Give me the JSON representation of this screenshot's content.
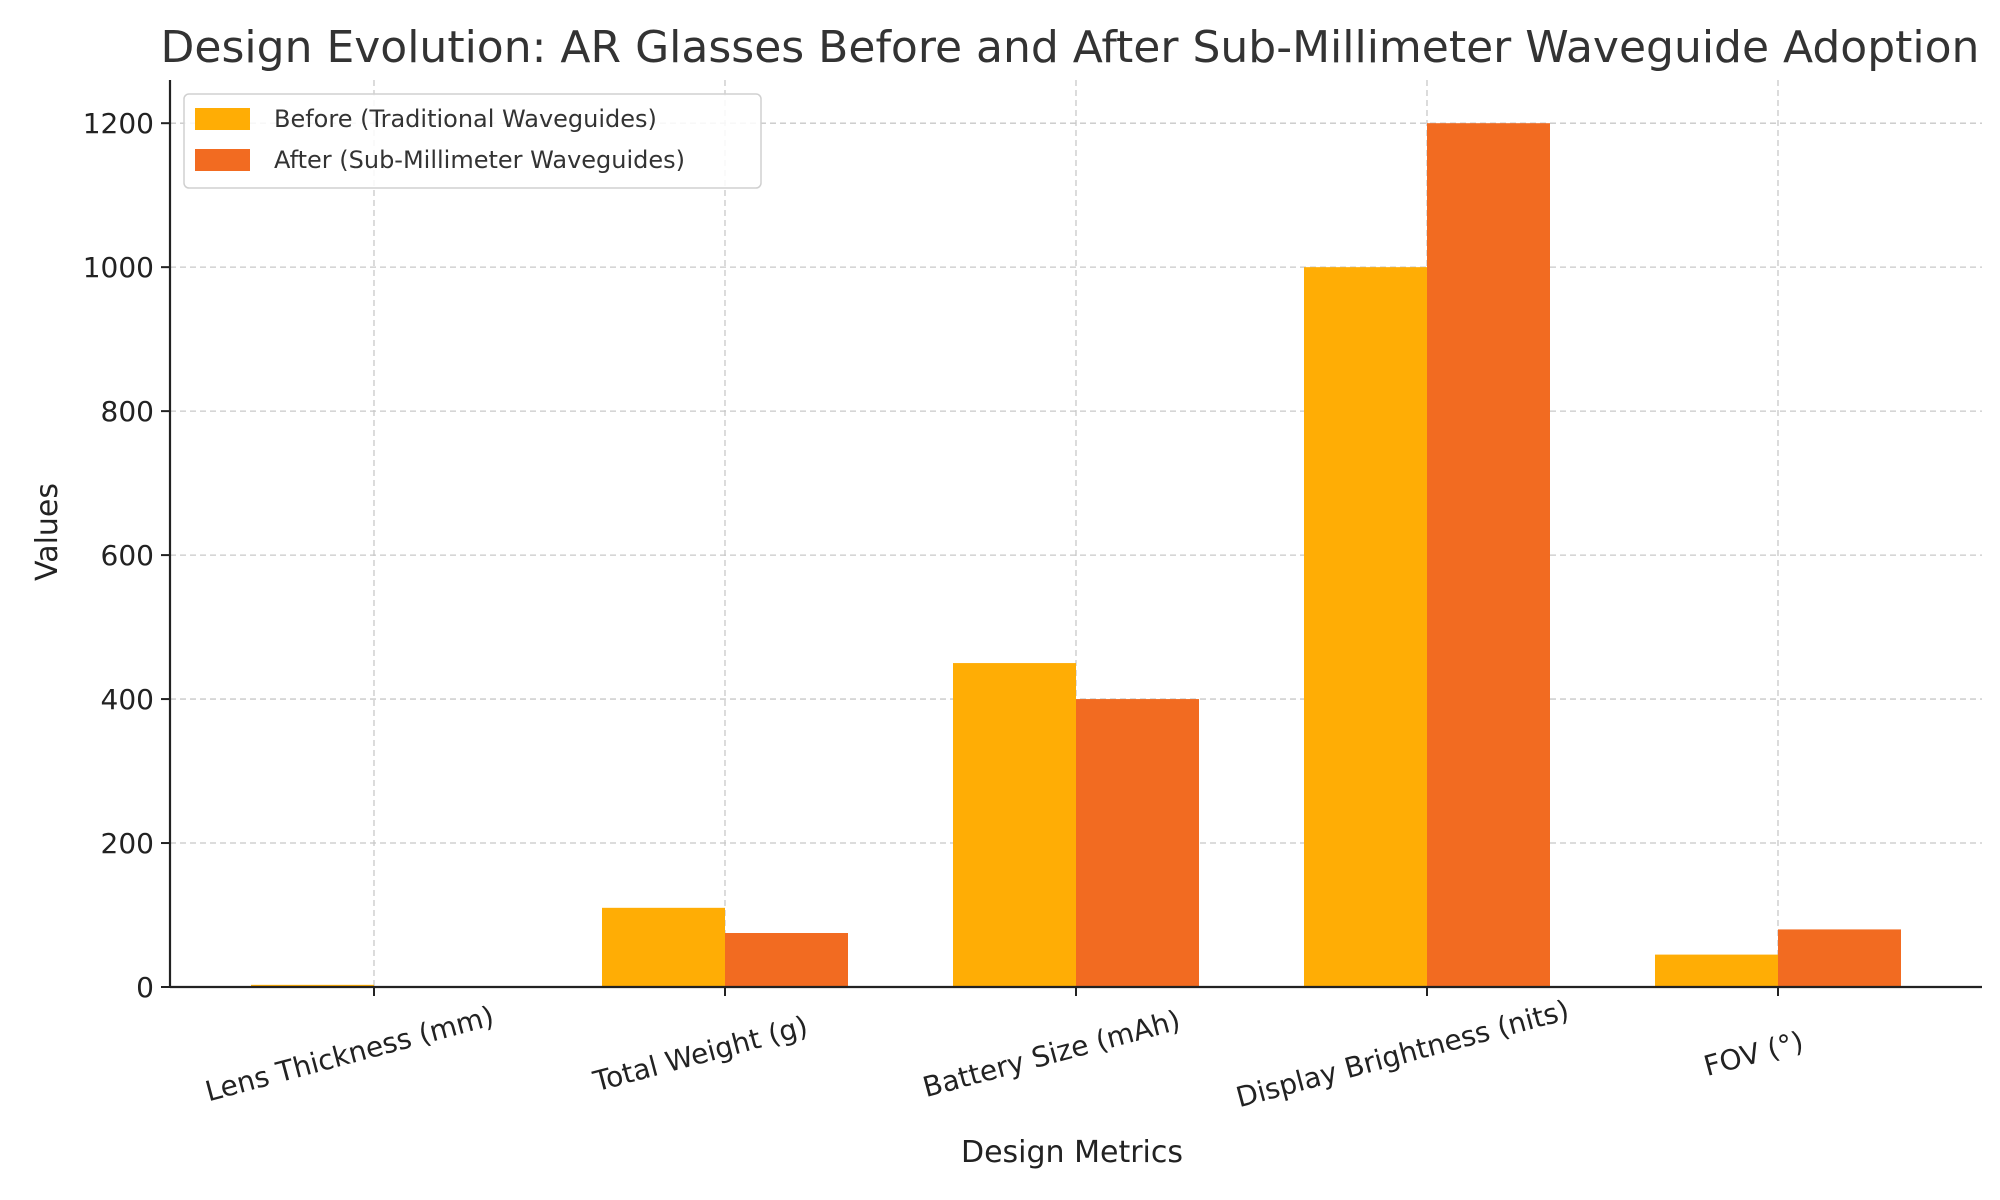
{
  "chart_data": {
    "type": "bar",
    "title": "Design Evolution: AR Glasses Before and After Sub-Millimeter Waveguide Adoption",
    "xlabel": "Design Metrics",
    "ylabel": "Values",
    "categories": [
      "Lens Thickness (mm)",
      "Total Weight (g)",
      "Battery Size (mAh)",
      "Display Brightness (nits)",
      "FOV (°)"
    ],
    "series": [
      {
        "name": "Before (Traditional Waveguides)",
        "color": "#FFAD05",
        "values": [
          3,
          110,
          450,
          1000,
          45
        ]
      },
      {
        "name": "After (Sub-Millimeter Waveguides)",
        "color": "#F26B21",
        "values": [
          0.8,
          75,
          400,
          1200,
          80
        ]
      }
    ],
    "ylim": [
      0,
      1260
    ],
    "yticks": [
      0,
      200,
      400,
      600,
      800,
      1000,
      1200
    ],
    "grid": true,
    "legend_position": "top-left"
  }
}
